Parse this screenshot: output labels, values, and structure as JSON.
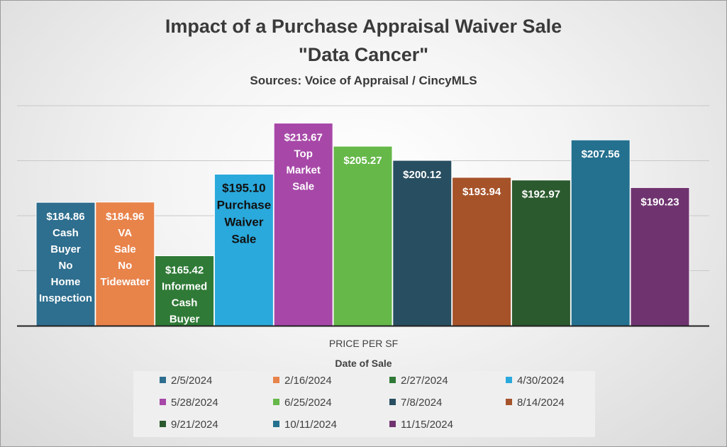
{
  "chart_data": {
    "type": "bar",
    "title": "Impact of a Purchase Appraisal  Waiver Sale",
    "title_line2": "\"Data Cancer\"",
    "subtitle": "Sources: Voice of Appraisal / CincyMLS",
    "xlabel": "PRICE PER SF",
    "legend_title": "Date of Sale",
    "legend_position": "bottom",
    "grid": true,
    "ylim": [
      140,
      220
    ],
    "categories": [
      "2/5/2024",
      "2/16/2024",
      "2/27/2024",
      "4/30/2024",
      "5/28/2024",
      "6/25/2024",
      "7/8/2024",
      "8/14/2024",
      "9/21/2024",
      "10/11/2024",
      "11/15/2024"
    ],
    "values": [
      184.86,
      184.96,
      165.42,
      195.1,
      213.67,
      205.27,
      200.12,
      193.94,
      192.97,
      207.56,
      190.23
    ],
    "data_labels": [
      "$184.86",
      "$184.96",
      "$165.42",
      "$195.10",
      "$213.67",
      "$205.27",
      "$200.12",
      "$193.94",
      "$192.97",
      "$207.56",
      "$190.23"
    ],
    "annotations": [
      [
        "Cash",
        "Buyer",
        "No",
        "Home",
        "Inspection"
      ],
      [
        "VA",
        "Sale",
        "No",
        "Tidewater"
      ],
      [
        "Informed",
        "Cash",
        "Buyer"
      ],
      [
        "Purchase",
        "Waiver",
        "Sale"
      ],
      [
        "Top",
        "Market",
        "Sale"
      ],
      [],
      [],
      [],
      [],
      [],
      []
    ],
    "colors": [
      "#2e6e8e",
      "#e8834a",
      "#2f7a36",
      "#2aa9dc",
      "#a748a8",
      "#66b849",
      "#284e61",
      "#a6532a",
      "#2b5a2e",
      "#24708f",
      "#6f3470"
    ],
    "label_colors": [
      "#ffffff",
      "#ffffff",
      "#ffffff",
      "#111111",
      "#ffffff",
      "#ffffff",
      "#ffffff",
      "#ffffff",
      "#ffffff",
      "#ffffff",
      "#ffffff"
    ]
  }
}
